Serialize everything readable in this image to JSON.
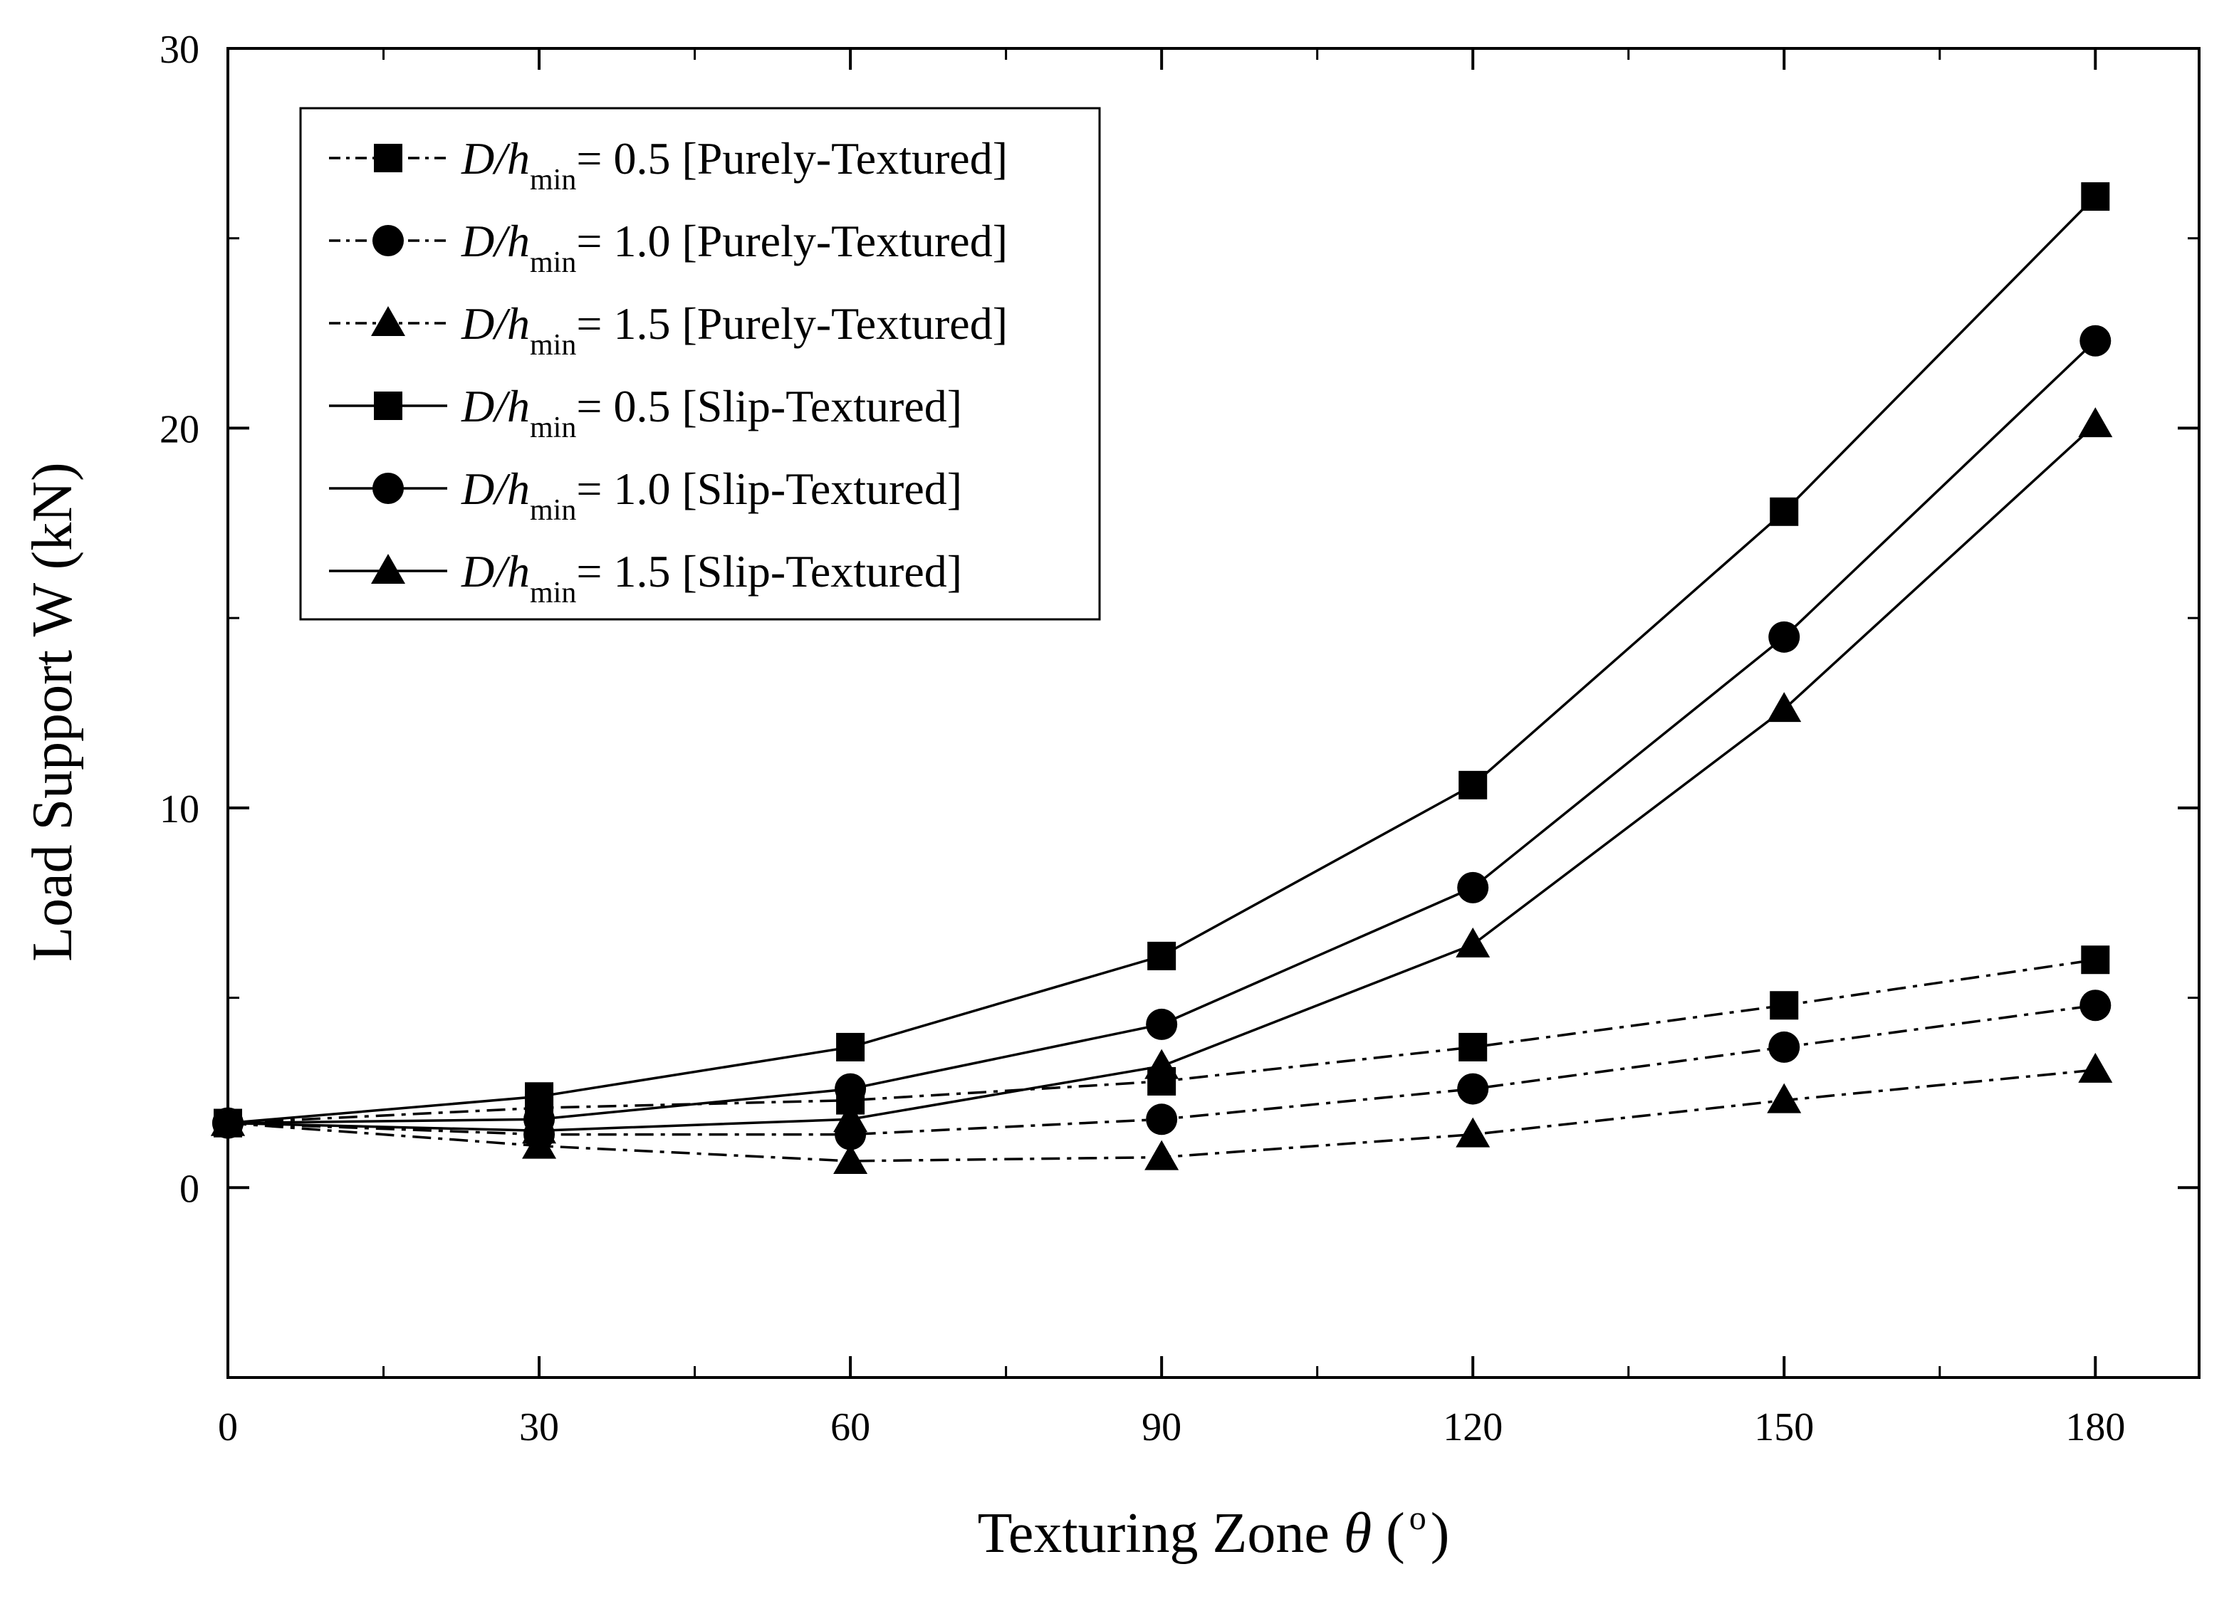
{
  "chart_data": {
    "type": "line",
    "xlabel": "Texturing Zone",
    "xlabel_symbol": "θ",
    "xlabel_unit_open": "(",
    "xlabel_unit": "o",
    "xlabel_unit_close": ")",
    "ylabel": "Load Support  W (kN)",
    "xlim": [
      0,
      190
    ],
    "ylim": [
      -5,
      30
    ],
    "x_ticks": [
      0,
      30,
      60,
      90,
      120,
      150,
      180
    ],
    "x_tick_labels": [
      "0",
      "30",
      "60",
      "90",
      "120",
      "150",
      "180"
    ],
    "y_ticks": [
      0,
      10,
      20,
      30
    ],
    "y_tick_labels": [
      "0",
      "10",
      "20",
      "30"
    ],
    "legend_position": "top-left",
    "legend_prefix": "D/h",
    "legend_subscript": "min",
    "x": [
      0,
      30,
      60,
      90,
      120,
      150,
      180
    ],
    "series": [
      {
        "name": "D/hmin = 0.5 [Purely-Textured]",
        "label_tail": "= 0.5 [Purely-Textured]",
        "marker": "square",
        "line": "dash-dot",
        "values": [
          1.7,
          2.1,
          2.3,
          2.8,
          3.7,
          4.8,
          6.0
        ]
      },
      {
        "name": "D/hmin = 1.0 [Purely-Textured]",
        "label_tail": "= 1.0 [Purely-Textured]",
        "marker": "circle",
        "line": "dash-dot",
        "values": [
          1.7,
          1.4,
          1.4,
          1.8,
          2.6,
          3.7,
          4.8
        ]
      },
      {
        "name": "D/hmin = 1.5 [Purely-Textured]",
        "label_tail": "= 1.5 [Purely-Textured]",
        "marker": "triangle",
        "line": "dash-dot",
        "values": [
          1.7,
          1.1,
          0.7,
          0.8,
          1.4,
          2.3,
          3.1
        ]
      },
      {
        "name": "D/hmin = 0.5 [Slip-Textured]",
        "label_tail": "= 0.5 [Slip-Textured]",
        "marker": "square",
        "line": "solid",
        "values": [
          1.7,
          2.4,
          3.7,
          6.1,
          10.6,
          17.8,
          26.1
        ]
      },
      {
        "name": "D/hmin = 1.0 [Slip-Textured]",
        "label_tail": "= 1.0 [Slip-Textured]",
        "marker": "circle",
        "line": "solid",
        "values": [
          1.7,
          1.8,
          2.6,
          4.3,
          7.9,
          14.5,
          22.3
        ]
      },
      {
        "name": "D/hmin = 1.5 [Slip-Textured]",
        "label_tail": "= 1.5 [Slip-Textured]",
        "marker": "triangle",
        "line": "solid",
        "values": [
          1.7,
          1.5,
          1.8,
          3.2,
          6.4,
          12.6,
          20.1
        ]
      }
    ]
  }
}
